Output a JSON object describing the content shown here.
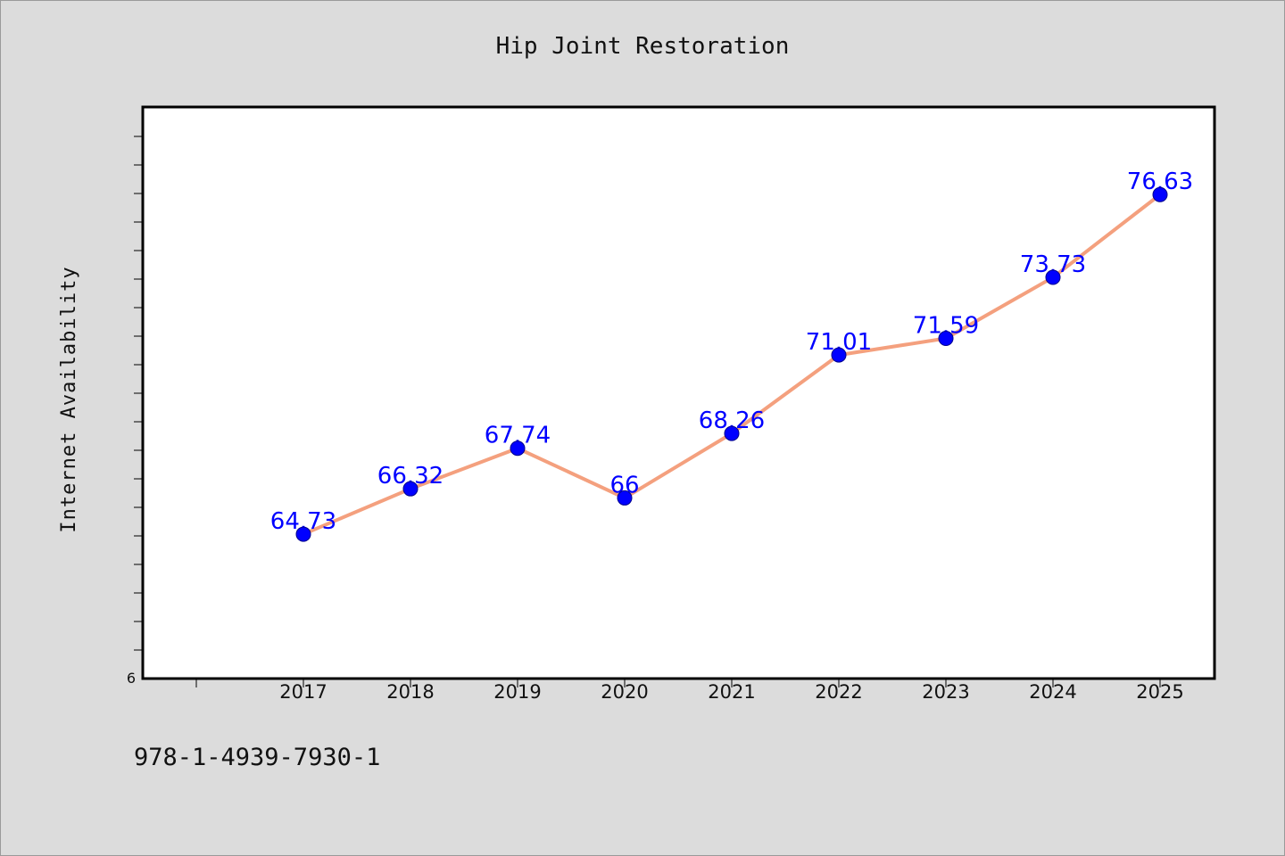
{
  "colors": {
    "background": "#dcdcdc",
    "plot_background": "#ffffff",
    "line": "#f4a07e",
    "marker": "#0000ff",
    "label": "#0000ff"
  },
  "chart_data": {
    "type": "line",
    "title": "Hip Joint Restoration",
    "xlabel": "",
    "ylabel": "Internet Availability",
    "categories": [
      "2017",
      "2018",
      "2019",
      "2020",
      "2021",
      "2022",
      "2023",
      "2024",
      "2025"
    ],
    "series": [
      {
        "values": [
          64.73,
          66.32,
          67.74,
          66,
          68.26,
          71.01,
          71.59,
          73.73,
          76.63
        ],
        "data_labels": [
          "64.73",
          "66.32",
          "67.74",
          "66",
          "68.26",
          "71.01",
          "71.59",
          "73.73",
          "76.63"
        ]
      }
    ],
    "ylim": [
      59.67,
      79.7
    ],
    "y_tick_labels": [
      "6"
    ],
    "grid": false,
    "legend": "none"
  },
  "footer": {
    "code": "978-1-4939-7930-1"
  }
}
